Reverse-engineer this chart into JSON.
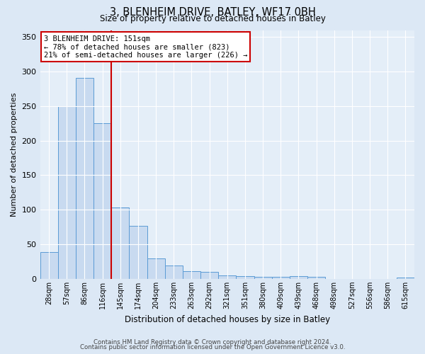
{
  "title": "3, BLENHEIM DRIVE, BATLEY, WF17 0BH",
  "subtitle": "Size of property relative to detached houses in Batley",
  "xlabel": "Distribution of detached houses by size in Batley",
  "ylabel": "Number of detached properties",
  "bar_labels": [
    "28sqm",
    "57sqm",
    "86sqm",
    "116sqm",
    "145sqm",
    "174sqm",
    "204sqm",
    "233sqm",
    "263sqm",
    "292sqm",
    "321sqm",
    "351sqm",
    "380sqm",
    "409sqm",
    "439sqm",
    "468sqm",
    "498sqm",
    "527sqm",
    "556sqm",
    "586sqm",
    "615sqm"
  ],
  "bar_values": [
    39,
    250,
    291,
    225,
    103,
    77,
    30,
    19,
    11,
    10,
    5,
    4,
    3,
    3,
    4,
    3,
    0,
    0,
    0,
    0,
    2
  ],
  "bar_color": "#c8daf0",
  "bar_edge_color": "#5b9bd5",
  "vline_after_index": 3,
  "vline_color": "#cc0000",
  "ylim": [
    0,
    360
  ],
  "yticks": [
    0,
    50,
    100,
    150,
    200,
    250,
    300,
    350
  ],
  "annotation_title": "3 BLENHEIM DRIVE: 151sqm",
  "annotation_line1": "← 78% of detached houses are smaller (823)",
  "annotation_line2": "21% of semi-detached houses are larger (226) →",
  "annotation_box_color": "#cc0000",
  "footer_line1": "Contains HM Land Registry data © Crown copyright and database right 2024.",
  "footer_line2": "Contains public sector information licensed under the Open Government Licence v3.0.",
  "background_color": "#dce8f5",
  "plot_bg_color": "#e4eef8"
}
